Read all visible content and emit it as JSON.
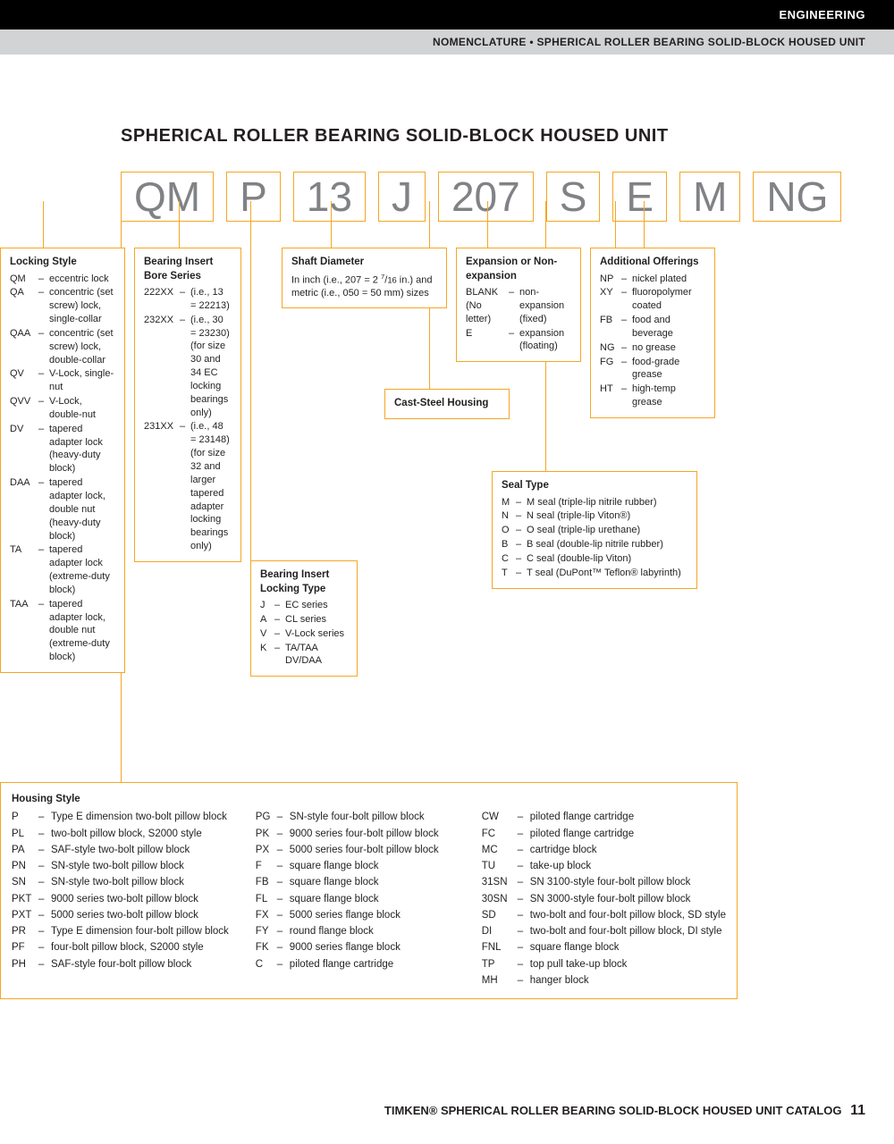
{
  "header": {
    "category": "ENGINEERING",
    "breadcrumb": "NOMENCLATURE • SPHERICAL ROLLER BEARING SOLID-BLOCK HOUSED UNIT"
  },
  "title": "SPHERICAL ROLLER BEARING SOLID-BLOCK HOUSED UNIT",
  "codes": [
    "QM",
    "P",
    "13",
    "J",
    "207",
    "S",
    "E",
    "M",
    "NG"
  ],
  "locking_style": {
    "title": "Locking Style",
    "items": [
      {
        "code": "QM",
        "text": "eccentric lock"
      },
      {
        "code": "QA",
        "text": "concentric (set screw) lock, single-collar"
      },
      {
        "code": "QAA",
        "text": "concentric (set screw) lock, double-collar"
      },
      {
        "code": "QV",
        "text": "V-Lock, single-nut"
      },
      {
        "code": "QVV",
        "text": "V-Lock, double-nut"
      },
      {
        "code": "DV",
        "text": "tapered adapter lock (heavy-duty block)"
      },
      {
        "code": "DAA",
        "text": "tapered adapter lock, double nut (heavy-duty block)"
      },
      {
        "code": "TA",
        "text": "tapered adapter lock (extreme-duty block)"
      },
      {
        "code": "TAA",
        "text": "tapered adapter lock, double nut (extreme-duty block)"
      }
    ]
  },
  "bore_series": {
    "title": "Bearing Insert Bore Series",
    "items": [
      {
        "code": "222XX",
        "text": "(i.e., 13 = 22213)"
      },
      {
        "code": "232XX",
        "text": "(i.e., 30 = 23230) (for size 30 and 34 EC locking bearings only)"
      },
      {
        "code": "231XX",
        "text": "(i.e., 48 = 23148) (for size 32 and larger tapered adapter locking bearings only)"
      }
    ]
  },
  "locking_type": {
    "title": "Bearing Insert Locking Type",
    "items": [
      {
        "code": "J",
        "text": "EC series"
      },
      {
        "code": "A",
        "text": "CL series"
      },
      {
        "code": "V",
        "text": "V-Lock series"
      },
      {
        "code": "K",
        "text": "TA/TAA DV/DAA"
      }
    ]
  },
  "shaft_diameter": {
    "title": "Shaft Diameter",
    "text": "In inch (i.e., 207 = 2 7/16 in.) and metric (i.e., 050 = 50 mm) sizes"
  },
  "cast_steel": {
    "title": "Cast-Steel Housing"
  },
  "expansion": {
    "title": "Expansion or Non-expansion",
    "items": [
      {
        "code": "BLANK (No letter)",
        "text": "non-expansion (fixed)"
      },
      {
        "code": "E",
        "text": "expansion (floating)"
      }
    ]
  },
  "seal_type": {
    "title": "Seal Type",
    "items": [
      {
        "code": "M",
        "text": "M seal (triple-lip nitrile rubber)"
      },
      {
        "code": "N",
        "text": "N seal (triple-lip Viton®)"
      },
      {
        "code": "O",
        "text": "O seal (triple-lip urethane)"
      },
      {
        "code": "B",
        "text": "B seal (double-lip nitrile rubber)"
      },
      {
        "code": "C",
        "text": "C seal (double-lip Viton)"
      },
      {
        "code": "T",
        "text": "T seal (DuPont™ Teflon® labyrinth)"
      }
    ]
  },
  "offerings": {
    "title": "Additional Offerings",
    "items": [
      {
        "code": "NP",
        "text": "nickel plated"
      },
      {
        "code": "XY",
        "text": "fluoropolymer coated"
      },
      {
        "code": "FB",
        "text": "food and beverage"
      },
      {
        "code": "NG",
        "text": "no grease"
      },
      {
        "code": "FG",
        "text": "food-grade grease"
      },
      {
        "code": "HT",
        "text": "high-temp grease"
      }
    ]
  },
  "housing": {
    "title": "Housing Style",
    "col1": [
      {
        "code": "P",
        "text": "Type E dimension two-bolt pillow block"
      },
      {
        "code": "PL",
        "text": "two-bolt pillow block, S2000 style"
      },
      {
        "code": "PA",
        "text": "SAF-style two-bolt pillow block"
      },
      {
        "code": "PN",
        "text": "SN-style two-bolt pillow block"
      },
      {
        "code": "SN",
        "text": "SN-style two-bolt pillow block"
      },
      {
        "code": "PKT",
        "text": "9000 series two-bolt pillow block"
      },
      {
        "code": "PXT",
        "text": "5000 series two-bolt pillow block"
      },
      {
        "code": "PR",
        "text": "Type E dimension four-bolt pillow block"
      },
      {
        "code": "PF",
        "text": "four-bolt pillow block, S2000 style"
      },
      {
        "code": "PH",
        "text": "SAF-style four-bolt pillow block"
      }
    ],
    "col2": [
      {
        "code": "PG",
        "text": "SN-style four-bolt pillow block"
      },
      {
        "code": "PK",
        "text": "9000 series four-bolt pillow block"
      },
      {
        "code": "PX",
        "text": "5000 series four-bolt pillow block"
      },
      {
        "code": "F",
        "text": "square flange block"
      },
      {
        "code": "FB",
        "text": "square flange block"
      },
      {
        "code": "FL",
        "text": "square flange block"
      },
      {
        "code": "FX",
        "text": "5000 series flange block"
      },
      {
        "code": "FY",
        "text": "round flange block"
      },
      {
        "code": "FK",
        "text": "9000 series flange block"
      },
      {
        "code": "C",
        "text": "piloted flange cartridge"
      }
    ],
    "col3": [
      {
        "code": "CW",
        "text": "piloted flange cartridge"
      },
      {
        "code": "FC",
        "text": "piloted flange cartridge"
      },
      {
        "code": "MC",
        "text": "cartridge block"
      },
      {
        "code": "TU",
        "text": "take-up block"
      },
      {
        "code": "31SN",
        "text": "SN 3100-style four-bolt pillow block"
      },
      {
        "code": "30SN",
        "text": "SN 3000-style four-bolt pillow block"
      },
      {
        "code": "SD",
        "text": "two-bolt and four-bolt pillow block, SD style"
      },
      {
        "code": "DI",
        "text": "two-bolt and four-bolt pillow block, DI style"
      },
      {
        "code": "FNL",
        "text": "square flange block"
      },
      {
        "code": "TP",
        "text": "top pull take-up block"
      },
      {
        "code": "MH",
        "text": "hanger block"
      }
    ]
  },
  "footer": {
    "text": "TIMKEN® SPHERICAL ROLLER BEARING SOLID-BLOCK HOUSED UNIT CATALOG",
    "page": "11"
  },
  "colors": {
    "orange": "#f5a623",
    "gray_text": "#808285",
    "black": "#000000",
    "gray_bar": "#d1d3d4"
  }
}
